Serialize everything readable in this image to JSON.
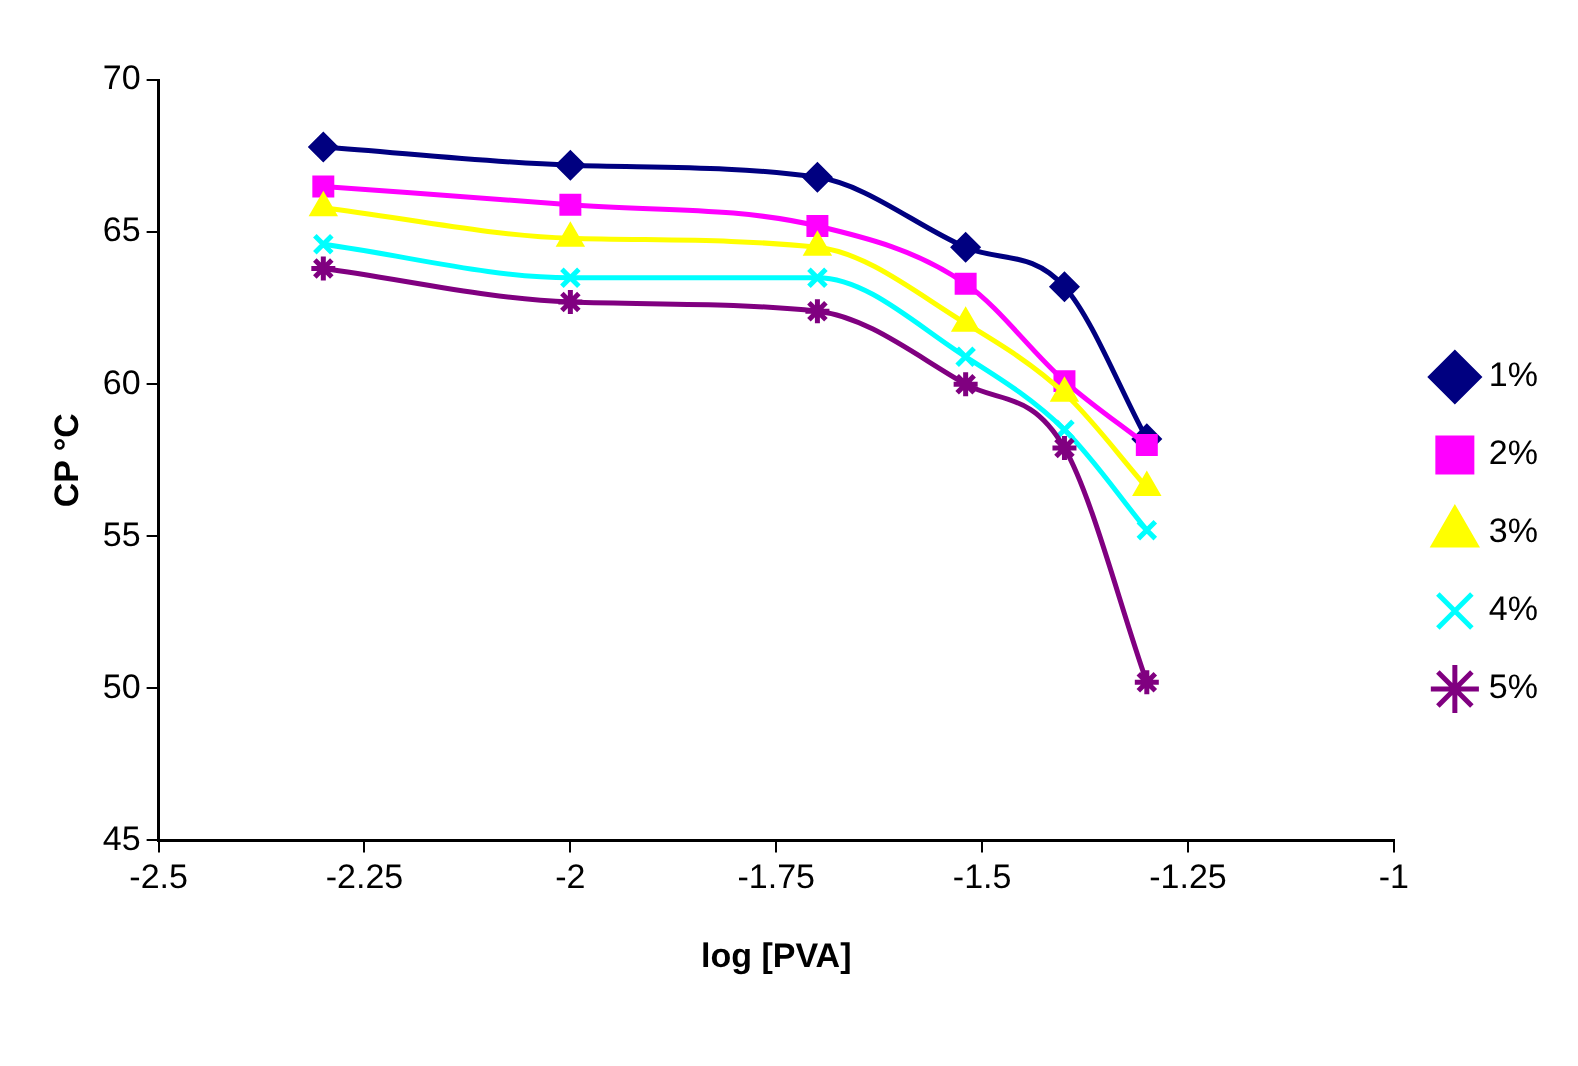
{
  "chart_data": {
    "type": "line",
    "xlabel": "log [PVA]",
    "ylabel": "CP °C",
    "x": [
      -2.3,
      -2.0,
      -1.7,
      -1.52,
      -1.4,
      -1.3
    ],
    "series": [
      {
        "name": "1%",
        "color": "#000080",
        "marker": "diamond",
        "values": [
          67.8,
          67.2,
          66.8,
          64.5,
          63.2,
          58.2
        ]
      },
      {
        "name": "2%",
        "color": "#ff00ff",
        "marker": "square",
        "values": [
          66.5,
          65.9,
          65.2,
          63.3,
          60.1,
          58.0
        ]
      },
      {
        "name": "3%",
        "color": "#ffff00",
        "marker": "triangle",
        "values": [
          65.8,
          64.8,
          64.5,
          62.0,
          59.7,
          56.6
        ]
      },
      {
        "name": "4%",
        "color": "#00ffff",
        "marker": "cross",
        "values": [
          64.6,
          63.5,
          63.5,
          60.9,
          58.5,
          55.2
        ]
      },
      {
        "name": "5%",
        "color": "#800080",
        "marker": "cross",
        "values": [
          63.8,
          62.7,
          62.4,
          60.0,
          57.9,
          50.2
        ]
      }
    ],
    "xlim": [
      -2.5,
      -1
    ],
    "xticks": [
      -2.5,
      -2.25,
      -2,
      -1.75,
      -1.5,
      -1.25,
      -1
    ],
    "ylim": [
      45,
      70
    ],
    "yticks": [
      45,
      50,
      55,
      60,
      65,
      70
    ],
    "grid": false,
    "legend": "right",
    "line_style": "solid"
  }
}
